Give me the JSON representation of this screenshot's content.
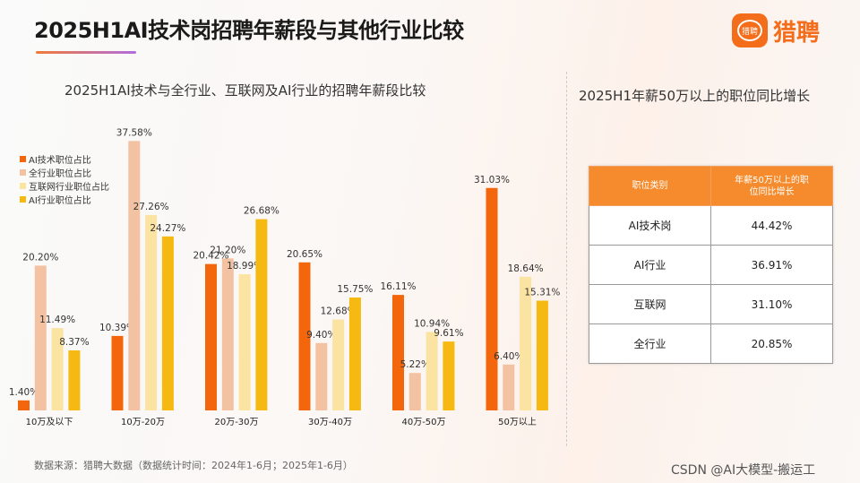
{
  "header": {
    "title": "2025H1AI技术岗招聘年薪段与其他行业比较",
    "logo_text": "猎聘",
    "logo_icon_text": "猎聘"
  },
  "chart_data": {
    "type": "bar",
    "title": "2025H1AI技术与全行业、互联网及AI行业的招聘年薪段比较",
    "categories": [
      "10万及以下",
      "10万-20万",
      "20万-30万",
      "30万-40万",
      "40万-50万",
      "50万以上"
    ],
    "series": [
      {
        "name": "AI技术职位占比",
        "color": "#f4660c",
        "values": [
          1.4,
          10.39,
          20.42,
          20.65,
          16.11,
          31.03
        ]
      },
      {
        "name": "全行业职位占比",
        "color": "#f3c2a2",
        "values": [
          20.2,
          37.58,
          21.2,
          9.4,
          5.22,
          6.4
        ]
      },
      {
        "name": "互联网行业职位占比",
        "color": "#fbe3a2",
        "values": [
          11.49,
          27.26,
          18.99,
          12.68,
          10.94,
          18.64
        ]
      },
      {
        "name": "AI行业职位占比",
        "color": "#f6b912",
        "values": [
          8.37,
          24.27,
          26.68,
          15.75,
          9.61,
          15.31
        ]
      }
    ],
    "value_format": "%",
    "legend": "top-left"
  },
  "table": {
    "title": "2025H1年薪50万以上的职位同比增长",
    "headers": [
      "职位类别",
      "年薪50万以上的职位同比增长"
    ],
    "rows": [
      [
        "AI技术岗",
        "44.42%"
      ],
      [
        "AI行业",
        "36.91%"
      ],
      [
        "互联网",
        "31.10%"
      ],
      [
        "全行业",
        "20.85%"
      ]
    ]
  },
  "footer": {
    "source": "数据来源：猎聘大数据（数据统计时间：2024年1-6月；2025年1-6月）",
    "watermark": "CSDN @AI大模型-搬运工"
  }
}
